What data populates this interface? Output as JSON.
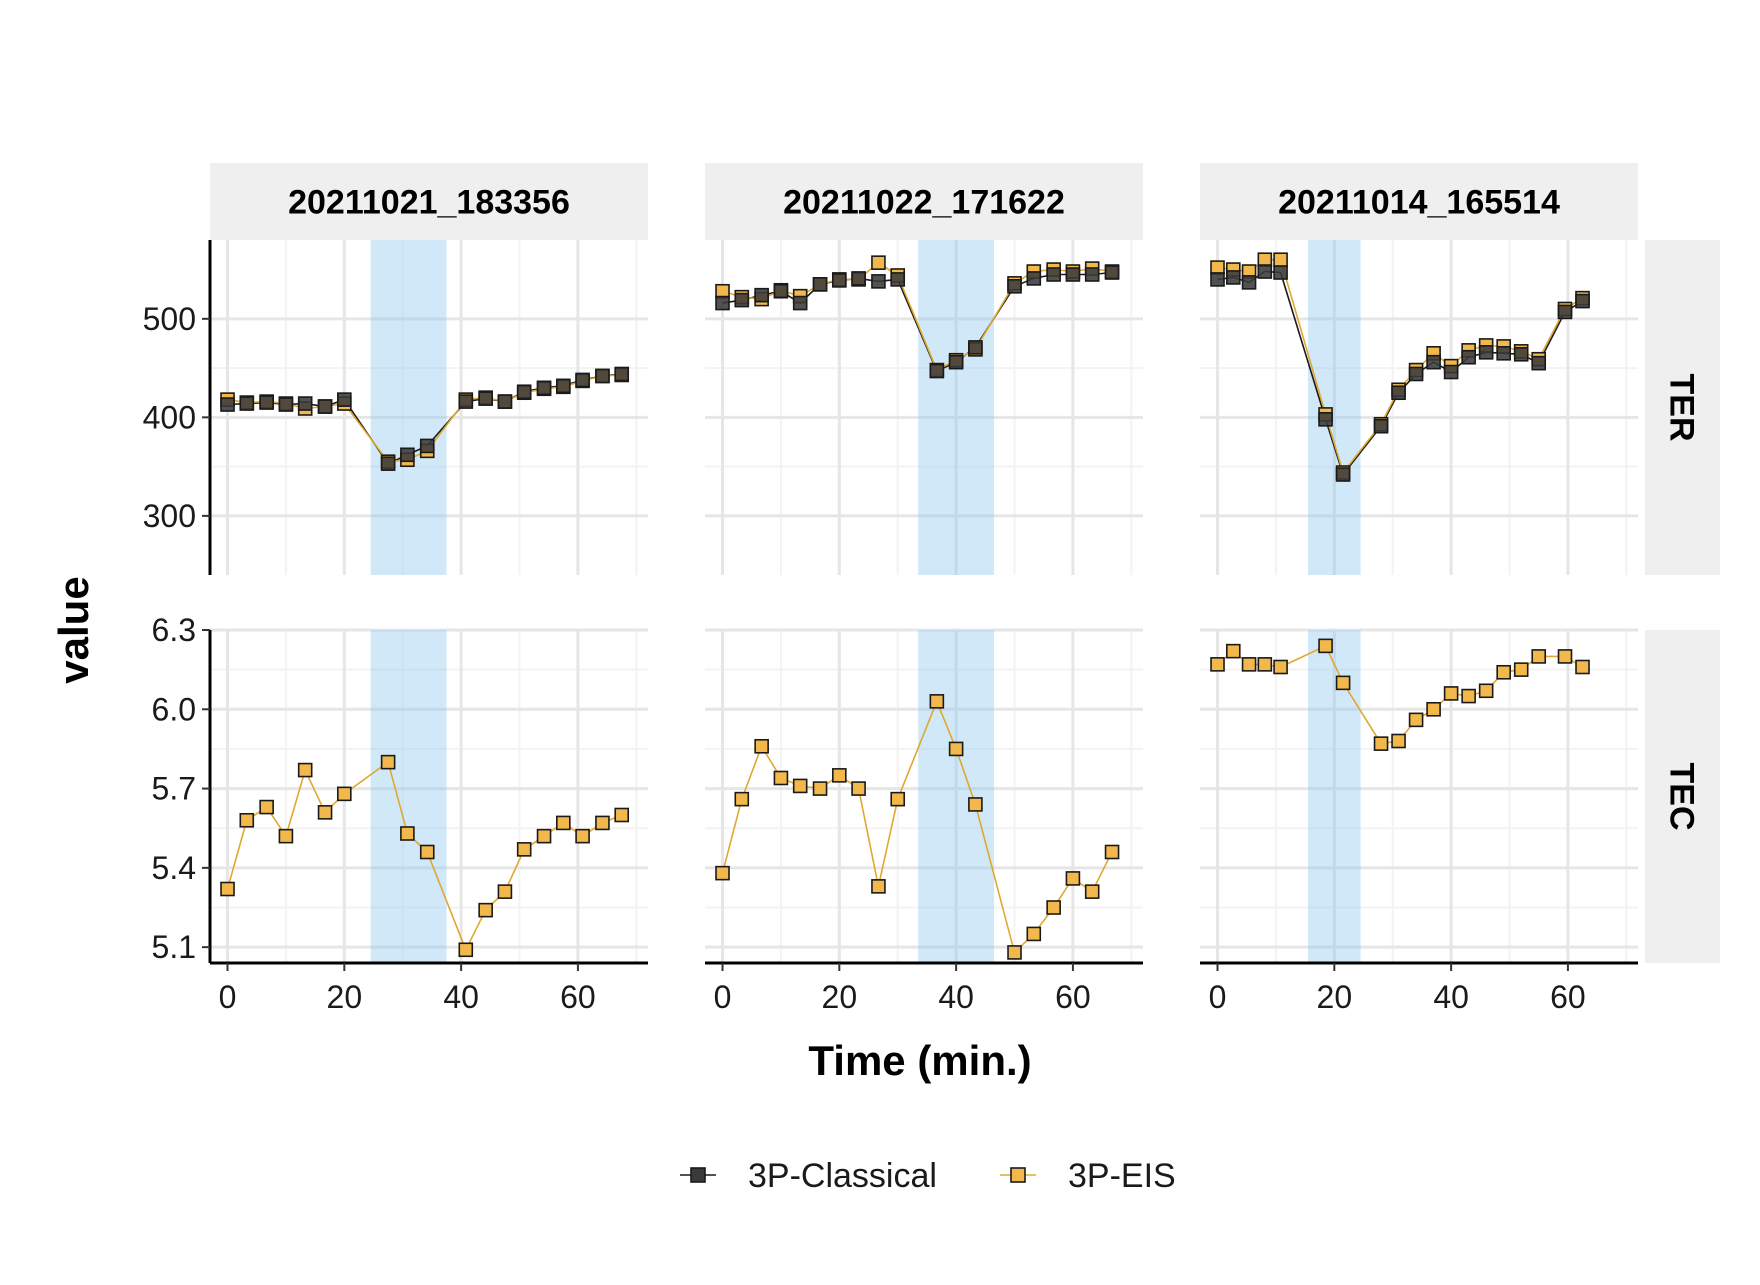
{
  "chart_data": {
    "type": "line",
    "xlabel": "Time (min.)",
    "ylabel": "value",
    "legend_position": "bottom",
    "grid": true,
    "panels": [
      "20211021_183356",
      "20211022_171622",
      "20211014_165514"
    ],
    "rows": [
      "TER",
      "TEC"
    ],
    "x_range": [
      -3,
      72
    ],
    "x_ticks": [
      0,
      20,
      40,
      60
    ],
    "y_ranges": {
      "TER": [
        240,
        580
      ],
      "TEC": [
        5.04,
        6.3
      ]
    },
    "y_ticks": {
      "TER": [
        300,
        400,
        500
      ],
      "TEC": [
        5.1,
        5.4,
        5.7,
        6.0,
        6.3
      ]
    },
    "y_tick_labels": {
      "TER": [
        "300",
        "400",
        "500"
      ],
      "TEC": [
        "5.1",
        "5.4",
        "5.7",
        "6.0",
        "6.3"
      ]
    },
    "x_tick_labels": [
      "0",
      "20",
      "40",
      "60"
    ],
    "highlight_color": "#8ec9ec",
    "series_styles": [
      {
        "name": "3P-Classical",
        "color": "#3a3a3a",
        "line_color": "#1a1a1a"
      },
      {
        "name": "3P-EIS",
        "color": "#f2b84b",
        "line_color": "#e0a82e"
      }
    ],
    "legend": [
      "3P-Classical",
      "3P-EIS"
    ],
    "data": [
      {
        "panel": "20211021_183356",
        "highlight": [
          24.5,
          37.5
        ],
        "TER": {
          "x": [
            0,
            3.3,
            6.7,
            10,
            13.3,
            16.7,
            20,
            27.5,
            30.8,
            34.2,
            40.8,
            44.2,
            47.5,
            50.8,
            54.2,
            57.5,
            60.8,
            64.2,
            67.5
          ],
          "series": [
            {
              "name": "3P-Classical",
              "values": [
                413,
                414,
                415,
                413,
                414,
                411,
                418,
                353,
                362,
                371,
                416,
                419,
                416,
                426,
                430,
                432,
                438,
                442,
                444
              ]
            },
            {
              "name": "3P-EIS",
              "values": [
                418,
                415,
                416,
                414,
                409,
                411,
                414,
                355,
                357,
                366,
                418,
                420,
                416,
                425,
                429,
                431,
                437,
                442,
                443
              ]
            }
          ]
        },
        "TEC": {
          "x": [
            0,
            3.3,
            6.7,
            10,
            13.3,
            16.7,
            20,
            27.5,
            30.8,
            34.2,
            40.8,
            44.2,
            47.5,
            50.8,
            54.2,
            57.5,
            60.8,
            64.2,
            67.5
          ],
          "series": [
            {
              "name": "3P-EIS",
              "values": [
                5.32,
                5.58,
                5.63,
                5.52,
                5.77,
                5.61,
                5.68,
                5.8,
                5.53,
                5.46,
                5.09,
                5.24,
                5.31,
                5.47,
                5.52,
                5.57,
                5.52,
                5.57,
                5.6
              ]
            }
          ]
        }
      },
      {
        "panel": "20211022_171622",
        "highlight": [
          33.5,
          46.5
        ],
        "TER": {
          "x": [
            0,
            3.3,
            6.7,
            10,
            13.3,
            16.7,
            20,
            23.3,
            26.7,
            30,
            36.7,
            40,
            43.3,
            50,
            53.3,
            56.7,
            60,
            63.3,
            66.7
          ],
          "series": [
            {
              "name": "3P-Classical",
              "values": [
                516,
                519,
                524,
                528,
                516,
                535,
                539,
                541,
                538,
                540,
                447,
                456,
                471,
                533,
                541,
                545,
                545,
                545,
                547
              ]
            },
            {
              "name": "3P-EIS",
              "values": [
                528,
                522,
                520,
                529,
                523,
                535,
                540,
                540,
                557,
                544,
                448,
                458,
                469,
                536,
                548,
                550,
                548,
                551,
                548
              ]
            }
          ]
        },
        "TEC": {
          "x": [
            0,
            3.3,
            6.7,
            10,
            13.3,
            16.7,
            20,
            23.3,
            26.7,
            30,
            36.7,
            40,
            43.3,
            50,
            53.3,
            56.7,
            60,
            63.3,
            66.7
          ],
          "series": [
            {
              "name": "3P-EIS",
              "values": [
                5.38,
                5.66,
                5.86,
                5.74,
                5.71,
                5.7,
                5.75,
                5.7,
                5.33,
                5.66,
                6.03,
                5.85,
                5.64,
                5.08,
                5.15,
                5.25,
                5.36,
                5.31,
                5.46
              ]
            }
          ]
        }
      },
      {
        "panel": "20211014_165514",
        "highlight": [
          15.5,
          24.5
        ],
        "TER": {
          "x": [
            0,
            2.7,
            5.4,
            8.1,
            10.8,
            18.5,
            21.5,
            28,
            31,
            34,
            37,
            40,
            43,
            46,
            49,
            52,
            55,
            59.5,
            62.5
          ],
          "series": [
            {
              "name": "3P-Classical",
              "values": [
                540,
                542,
                537,
                548,
                547,
                398,
                342,
                391,
                425,
                444,
                456,
                446,
                461,
                466,
                465,
                464,
                455,
                507,
                518
              ]
            },
            {
              "name": "3P-EIS",
              "values": [
                552,
                550,
                548,
                560,
                560,
                403,
                344,
                393,
                428,
                448,
                465,
                452,
                468,
                473,
                472,
                467,
                459,
                510,
                521
              ]
            }
          ]
        },
        "TEC": {
          "x": [
            0,
            2.7,
            5.4,
            8.1,
            10.8,
            18.5,
            21.5,
            28,
            31,
            34,
            37,
            40,
            43,
            46,
            49,
            52,
            55,
            59.5,
            62.5
          ],
          "series": [
            {
              "name": "3P-EIS",
              "values": [
                6.17,
                6.22,
                6.17,
                6.17,
                6.16,
                6.24,
                6.1,
                5.87,
                5.88,
                5.96,
                6.0,
                6.06,
                6.05,
                6.07,
                6.14,
                6.15,
                6.2,
                6.2,
                6.16
              ]
            }
          ]
        }
      }
    ]
  }
}
